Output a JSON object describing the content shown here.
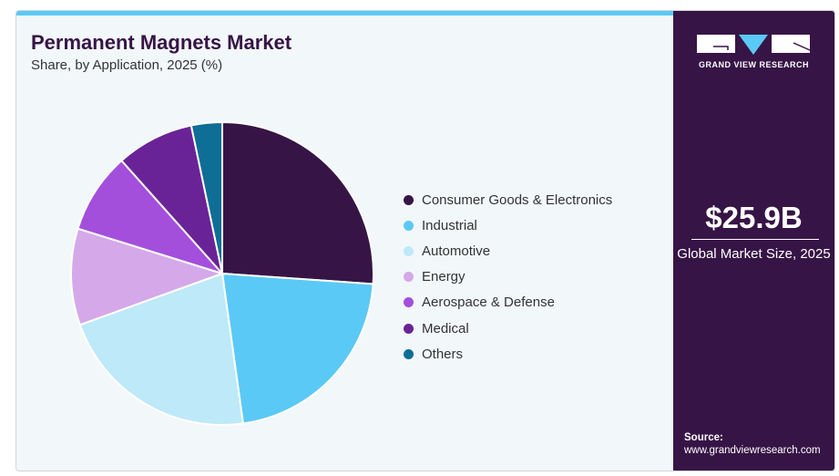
{
  "header": {
    "title": "Permanent Magnets Market",
    "subtitle": "Share, by Application, 2025 (%)"
  },
  "chart_data": {
    "type": "pie",
    "title": "Permanent Magnets Market",
    "subtitle": "Share, by Application, 2025 (%)",
    "categories": [
      "Consumer Goods & Electronics",
      "Industrial",
      "Automotive",
      "Energy",
      "Aerospace & Defense",
      "Medical",
      "Others"
    ],
    "values": [
      26.1,
      21.7,
      21.7,
      10.3,
      8.6,
      8.3,
      3.3
    ],
    "colors": [
      "#371446",
      "#5bc9f5",
      "#bde9f9",
      "#d5a8ea",
      "#a34fdb",
      "#6a2396",
      "#0f6e96"
    ],
    "legend_position": "right"
  },
  "sidebar": {
    "logo_text": "GRAND VIEW RESEARCH",
    "market_value": "$25.9B",
    "market_label": "Global Market Size, 2025",
    "source_label": "Source:",
    "source_url": "www.grandviewresearch.com"
  }
}
